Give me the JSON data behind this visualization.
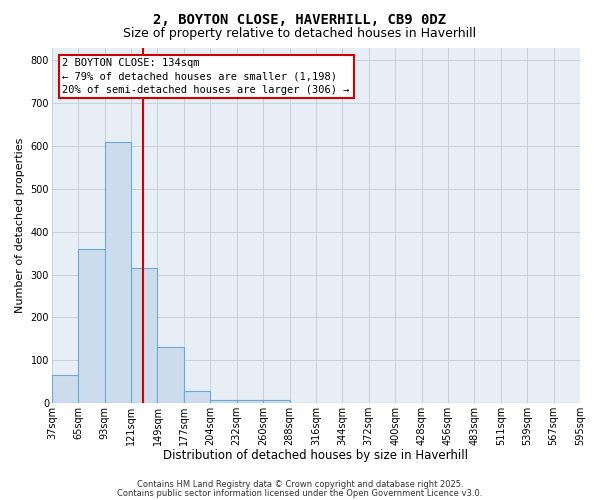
{
  "title1": "2, BOYTON CLOSE, HAVERHILL, CB9 0DZ",
  "title2": "Size of property relative to detached houses in Haverhill",
  "xlabel": "Distribution of detached houses by size in Haverhill",
  "ylabel": "Number of detached properties",
  "bin_labels": [
    "37sqm",
    "65sqm",
    "93sqm",
    "121sqm",
    "149sqm",
    "177sqm",
    "204sqm",
    "232sqm",
    "260sqm",
    "288sqm",
    "316sqm",
    "344sqm",
    "372sqm",
    "400sqm",
    "428sqm",
    "456sqm",
    "483sqm",
    "511sqm",
    "539sqm",
    "567sqm",
    "595sqm"
  ],
  "bar_values": [
    65,
    360,
    610,
    315,
    130,
    28,
    8,
    8,
    8,
    0,
    0,
    0,
    0,
    0,
    0,
    0,
    0,
    0,
    0,
    0
  ],
  "bar_color": "#ccdcec",
  "bar_edge_color": "#6aaad4",
  "grid_color": "#c0ccd8",
  "background_color": "#e8eef6",
  "vline_color": "#cc0000",
  "annotation_text": "2 BOYTON CLOSE: 134sqm\n← 79% of detached houses are smaller (1,198)\n20% of semi-detached houses are larger (306) →",
  "annotation_box_color": "#cc0000",
  "ylim": [
    0,
    830
  ],
  "yticks": [
    0,
    100,
    200,
    300,
    400,
    500,
    600,
    700,
    800
  ],
  "footnote1": "Contains HM Land Registry data © Crown copyright and database right 2025.",
  "footnote2": "Contains public sector information licensed under the Open Government Licence v3.0.",
  "title1_fontsize": 10,
  "title2_fontsize": 9,
  "tick_fontsize": 7,
  "ylabel_fontsize": 8,
  "xlabel_fontsize": 8.5,
  "annot_fontsize": 7.5,
  "footnote_fontsize": 6
}
